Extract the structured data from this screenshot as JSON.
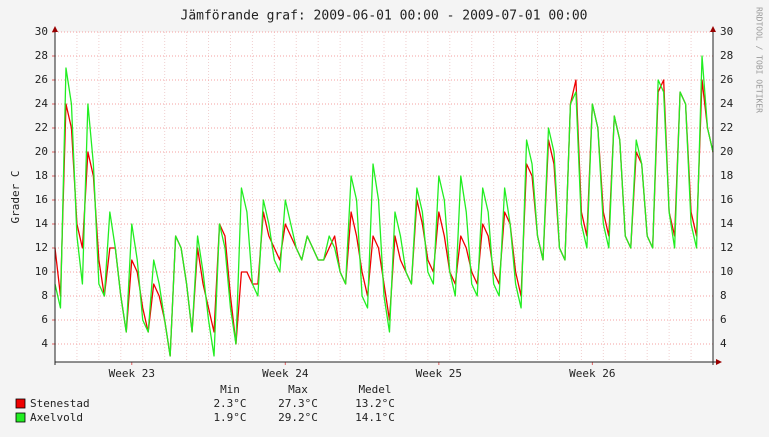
{
  "chart_data": {
    "type": "line",
    "title": "Jämförande graf: 2009-06-01 00:00 - 2009-07-01 00:00",
    "y_label": "Grader C",
    "watermark": "RRDTOOL / TOBI OETIKER",
    "xlim": [
      "2009-06-01 00:00",
      "2009-07-01 00:00"
    ],
    "xticks": [
      {
        "value": "2009-06-04 12:00",
        "label": "Week 23"
      },
      {
        "value": "2009-06-11 12:00",
        "label": "Week 24"
      },
      {
        "value": "2009-06-18 12:00",
        "label": "Week 25"
      },
      {
        "value": "2009-06-25 12:00",
        "label": "Week 26"
      }
    ],
    "ylim": [
      2.5,
      30
    ],
    "yticks": [
      4,
      6,
      8,
      10,
      12,
      14,
      16,
      18,
      20,
      22,
      24,
      26,
      28,
      30
    ],
    "grid": true,
    "legend_headers": [
      "Min",
      "Max",
      "Medel"
    ],
    "series": [
      {
        "name": "Stenestad",
        "color": "#ee0000",
        "stats_labels": [
          "2.3°C",
          "27.3°C",
          "13.2°C"
        ],
        "values": [
          12,
          8,
          24,
          22,
          14,
          12,
          20,
          18,
          11,
          8,
          12,
          12,
          8,
          5,
          11,
          10,
          7,
          5,
          9,
          8,
          6,
          3,
          13,
          12,
          9,
          5,
          12,
          9,
          7,
          5,
          14,
          13,
          8,
          4,
          10,
          10,
          9,
          9,
          15,
          13,
          12,
          11,
          14,
          13,
          12,
          11,
          13,
          12,
          11,
          11,
          12,
          13,
          10,
          9,
          15,
          13,
          10,
          8,
          13,
          12,
          9,
          6,
          13,
          11,
          10,
          9,
          16,
          14,
          11,
          10,
          15,
          13,
          10,
          9,
          13,
          12,
          10,
          9,
          14,
          13,
          10,
          9,
          15,
          14,
          10,
          8,
          19,
          18,
          13,
          11,
          21,
          19,
          12,
          11,
          24,
          26,
          15,
          13,
          24,
          22,
          15,
          13,
          23,
          21,
          13,
          12,
          20,
          19,
          13,
          12,
          25,
          26,
          15,
          13,
          25,
          24,
          15,
          13,
          26,
          22,
          20
        ]
      },
      {
        "name": "Axelvold",
        "color": "#22ee22",
        "stats_labels": [
          "1.9°C",
          "29.2°C",
          "14.1°C"
        ],
        "values": [
          9,
          7,
          27,
          24,
          13,
          9,
          24,
          19,
          9,
          8,
          15,
          12,
          8,
          5,
          14,
          11,
          6,
          5,
          11,
          9,
          6,
          3,
          13,
          12,
          9,
          5,
          13,
          10,
          6,
          3,
          14,
          12,
          7,
          4,
          17,
          15,
          9,
          8,
          16,
          14,
          11,
          10,
          16,
          14,
          12,
          11,
          13,
          12,
          11,
          11,
          13,
          12,
          10,
          9,
          18,
          16,
          8,
          7,
          19,
          16,
          8,
          5,
          15,
          13,
          10,
          9,
          17,
          15,
          10,
          9,
          18,
          16,
          10,
          8,
          18,
          15,
          9,
          8,
          17,
          15,
          9,
          8,
          17,
          14,
          9,
          7,
          21,
          19,
          13,
          11,
          22,
          20,
          12,
          11,
          24,
          25,
          14,
          12,
          24,
          22,
          14,
          12,
          23,
          21,
          13,
          12,
          21,
          19,
          13,
          12,
          26,
          25,
          15,
          12,
          25,
          24,
          14,
          12,
          28,
          22,
          20
        ]
      }
    ]
  }
}
